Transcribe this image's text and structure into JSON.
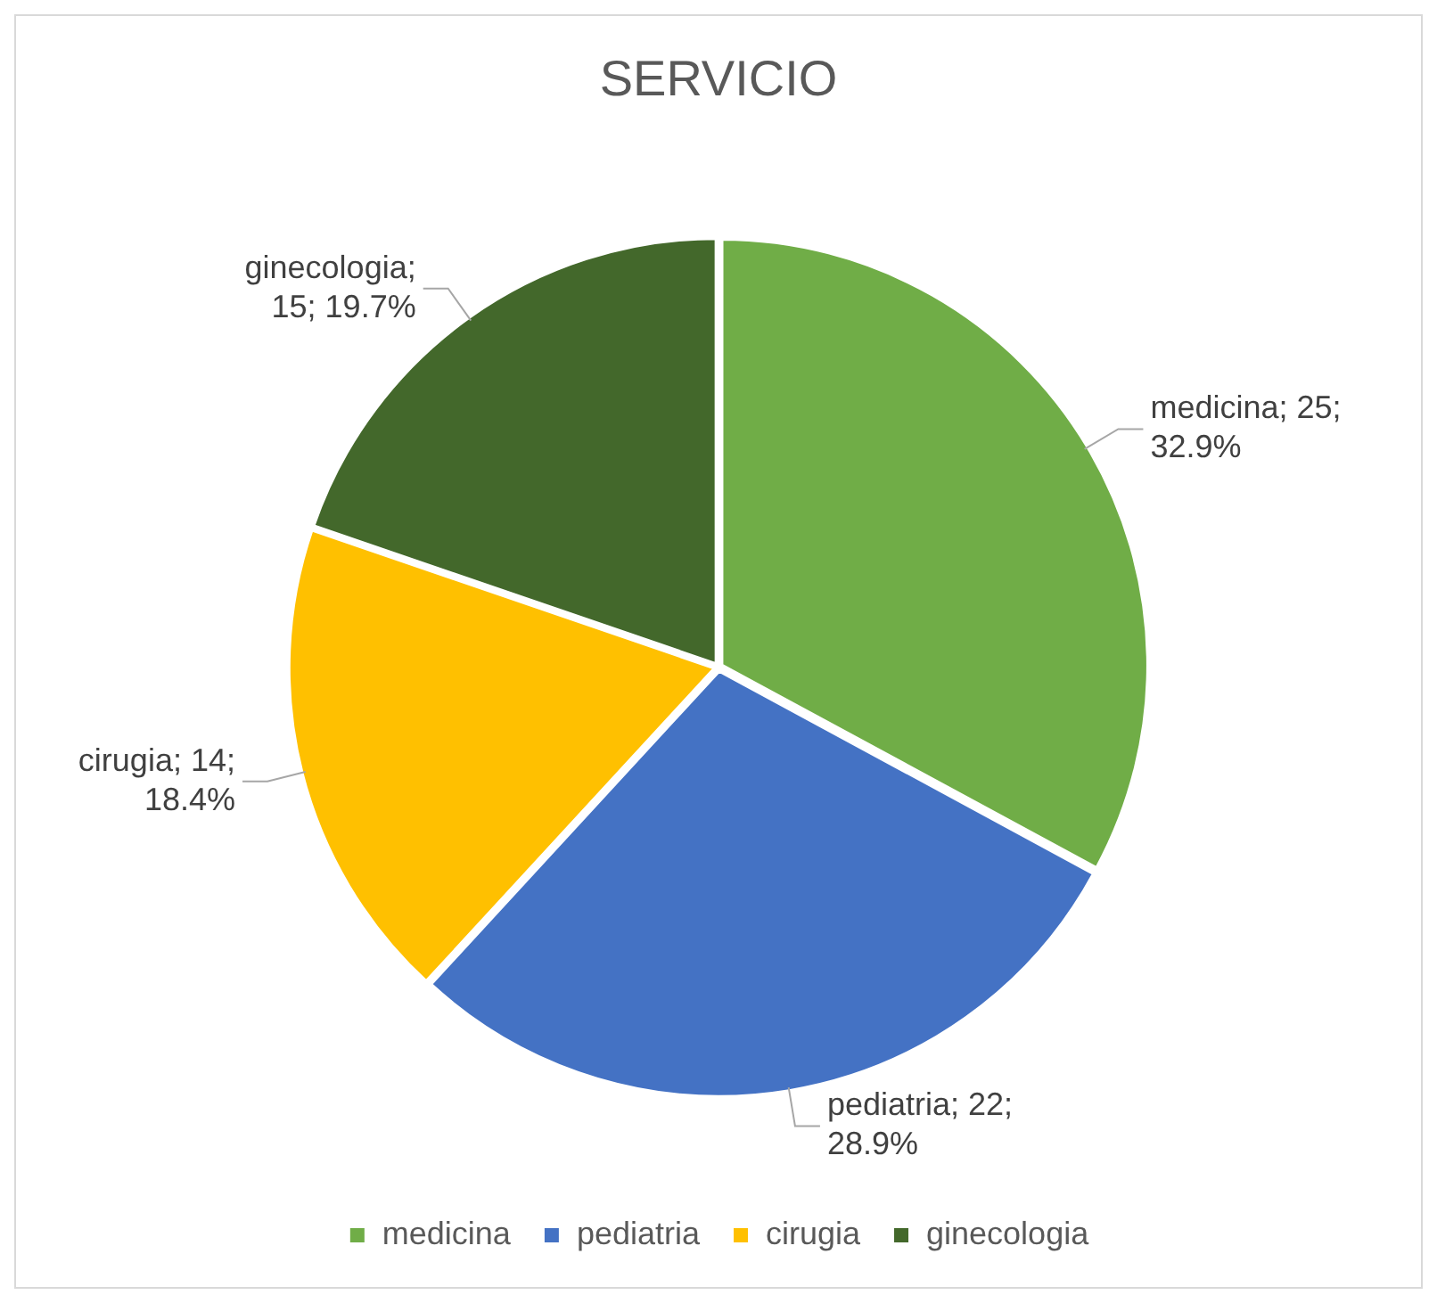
{
  "chart_data": {
    "type": "pie",
    "title": "SERVICIO",
    "categories": [
      "medicina",
      "pediatria",
      "cirugia",
      "ginecologia"
    ],
    "values": [
      25,
      22,
      14,
      15
    ],
    "colors": [
      "#70ad47",
      "#4472c4",
      "#ffc000",
      "#43682b"
    ],
    "value_labels": [
      "medicina; 25; 32.9%",
      "pediatria; 22; 28.9%",
      "cirugia; 14; 18.4%",
      "ginecologia; 15; 19.7%"
    ],
    "legend": "bottom"
  }
}
